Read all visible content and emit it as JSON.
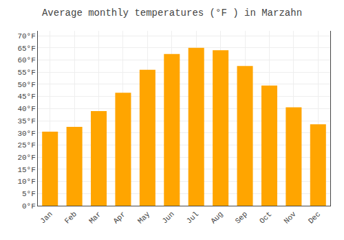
{
  "chart_data": {
    "type": "bar",
    "title": "Average monthly temperatures (°F ) in Marzahn",
    "categories": [
      "Jan",
      "Feb",
      "Mar",
      "Apr",
      "May",
      "Jun",
      "Jul",
      "Aug",
      "Sep",
      "Oct",
      "Nov",
      "Dec"
    ],
    "values": [
      30.5,
      32.5,
      39.0,
      46.5,
      56.0,
      62.5,
      65.0,
      64.0,
      57.5,
      49.5,
      40.5,
      33.5
    ],
    "color": "#FFA500",
    "ylim": [
      0,
      72
    ],
    "yticks": [
      {
        "value": 0,
        "label": "0°F"
      },
      {
        "value": 5,
        "label": "5°F"
      },
      {
        "value": 10,
        "label": "10°F"
      },
      {
        "value": 15,
        "label": "15°F"
      },
      {
        "value": 20,
        "label": "20°F"
      },
      {
        "value": 25,
        "label": "25°F"
      },
      {
        "value": 30,
        "label": "30°F"
      },
      {
        "value": 35,
        "label": "35°F"
      },
      {
        "value": 40,
        "label": "40°F"
      },
      {
        "value": 45,
        "label": "45°F"
      },
      {
        "value": 50,
        "label": "50°F"
      },
      {
        "value": 55,
        "label": "55°F"
      },
      {
        "value": 60,
        "label": "60°F"
      },
      {
        "value": 65,
        "label": "65°F"
      },
      {
        "value": 70,
        "label": "70°F"
      }
    ],
    "grid": true
  }
}
